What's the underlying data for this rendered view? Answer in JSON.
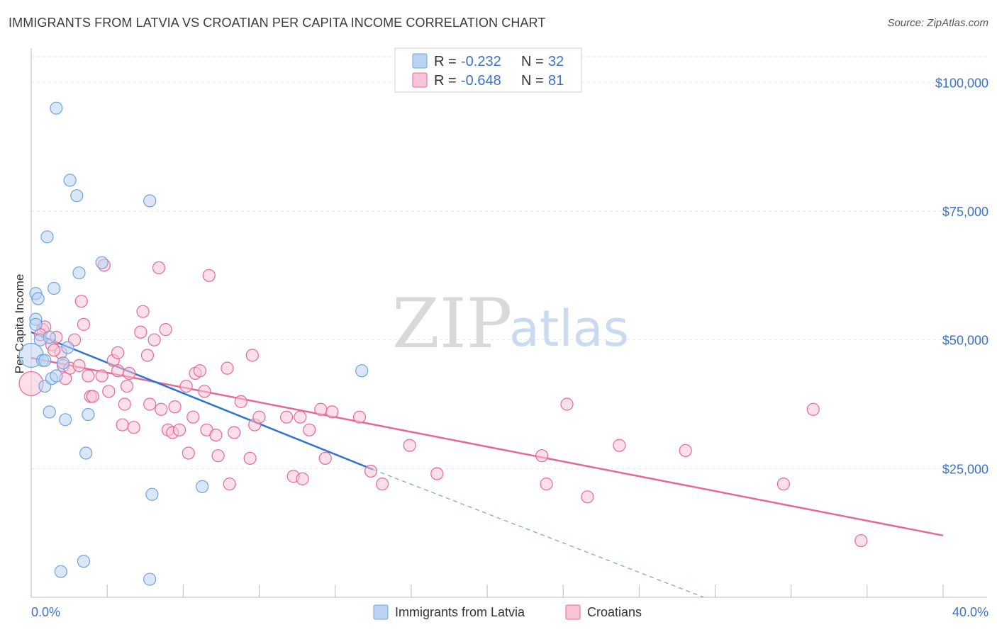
{
  "header": {
    "title": "IMMIGRANTS FROM LATVIA VS CROATIAN PER CAPITA INCOME CORRELATION CHART",
    "source": "Source: ZipAtlas.com"
  },
  "watermark": {
    "zip": "ZIP",
    "atlas": "atlas"
  },
  "legend": {
    "rows": [
      {
        "r_label": "R =",
        "r_value": "-0.232",
        "n_label": "N =",
        "n_value": "32",
        "color": "#a9c8f0"
      },
      {
        "r_label": "R =",
        "r_value": "-0.648",
        "n_label": "N =",
        "n_value": "81",
        "color": "#f7b8cc"
      }
    ]
  },
  "chart_data": {
    "type": "scatter",
    "title": "IMMIGRANTS FROM LATVIA VS CROATIAN PER CAPITA INCOME CORRELATION CHART",
    "xlabel": "",
    "ylabel": "Per Capita Income",
    "xlim": [
      0,
      40
    ],
    "ylim": [
      0,
      105000
    ],
    "x_tick_labels": [
      "0.0%",
      "40.0%"
    ],
    "y_ticks": [
      25000,
      50000,
      75000,
      100000
    ],
    "y_tick_labels": [
      "$25,000",
      "$50,000",
      "$75,000",
      "$100,000"
    ],
    "grid": true,
    "legend_position": "bottom",
    "series": [
      {
        "name": "Immigrants from Latvia",
        "color": "#6fa3e0",
        "fill": "#bcd4f3",
        "points": [
          [
            0.0,
            47000
          ],
          [
            0.2,
            54000
          ],
          [
            0.2,
            59000
          ],
          [
            0.3,
            58000
          ],
          [
            0.4,
            50000
          ],
          [
            0.5,
            46000
          ],
          [
            0.6,
            41000
          ],
          [
            0.7,
            70000
          ],
          [
            0.8,
            36000
          ],
          [
            0.8,
            50500
          ],
          [
            0.9,
            42500
          ],
          [
            1.0,
            60000
          ],
          [
            1.1,
            95000
          ],
          [
            1.1,
            43000
          ],
          [
            1.3,
            5000
          ],
          [
            1.4,
            45500
          ],
          [
            1.5,
            34500
          ],
          [
            1.6,
            48500
          ],
          [
            1.7,
            81000
          ],
          [
            2.0,
            78000
          ],
          [
            2.1,
            63000
          ],
          [
            2.3,
            7000
          ],
          [
            2.4,
            28000
          ],
          [
            2.5,
            35500
          ],
          [
            3.1,
            65000
          ],
          [
            5.2,
            3500
          ],
          [
            5.3,
            20000
          ],
          [
            5.2,
            77000
          ],
          [
            7.5,
            21500
          ],
          [
            14.5,
            44000
          ],
          [
            0.2,
            53000
          ],
          [
            0.6,
            46000
          ]
        ],
        "trend": {
          "x": [
            0.0,
            15.0
          ],
          "y": [
            51500,
            24800
          ]
        },
        "trend_extension": {
          "x": [
            15.0,
            29.5
          ],
          "y": [
            24800,
            -1000
          ]
        }
      },
      {
        "name": "Croatians",
        "color": "#e56a93",
        "fill": "#f9c4d5",
        "points": [
          [
            0.0,
            41500
          ],
          [
            0.5,
            52000
          ],
          [
            0.6,
            52500
          ],
          [
            0.9,
            49000
          ],
          [
            1.1,
            50500
          ],
          [
            1.3,
            47500
          ],
          [
            1.4,
            45000
          ],
          [
            1.5,
            42500
          ],
          [
            1.7,
            44500
          ],
          [
            1.9,
            50000
          ],
          [
            2.1,
            45000
          ],
          [
            2.2,
            57500
          ],
          [
            2.3,
            53000
          ],
          [
            2.5,
            43000
          ],
          [
            2.6,
            39000
          ],
          [
            2.7,
            39000
          ],
          [
            3.1,
            43000
          ],
          [
            3.2,
            64500
          ],
          [
            3.4,
            40000
          ],
          [
            3.6,
            46000
          ],
          [
            3.8,
            47500
          ],
          [
            3.8,
            44000
          ],
          [
            4.0,
            33500
          ],
          [
            4.1,
            37500
          ],
          [
            4.2,
            41000
          ],
          [
            4.3,
            43500
          ],
          [
            4.5,
            33000
          ],
          [
            4.8,
            51500
          ],
          [
            4.9,
            55500
          ],
          [
            5.1,
            47000
          ],
          [
            5.2,
            37500
          ],
          [
            5.4,
            50000
          ],
          [
            5.6,
            64000
          ],
          [
            5.7,
            36500
          ],
          [
            5.9,
            52000
          ],
          [
            6.0,
            32500
          ],
          [
            6.2,
            32000
          ],
          [
            6.3,
            37000
          ],
          [
            6.5,
            32500
          ],
          [
            6.8,
            41000
          ],
          [
            6.9,
            28000
          ],
          [
            7.1,
            35000
          ],
          [
            7.2,
            43500
          ],
          [
            7.4,
            44000
          ],
          [
            7.6,
            40000
          ],
          [
            7.7,
            32500
          ],
          [
            7.8,
            62500
          ],
          [
            8.1,
            31500
          ],
          [
            8.2,
            27500
          ],
          [
            8.6,
            44500
          ],
          [
            8.7,
            22000
          ],
          [
            8.9,
            32000
          ],
          [
            9.2,
            38000
          ],
          [
            9.6,
            27000
          ],
          [
            9.7,
            47000
          ],
          [
            9.8,
            33500
          ],
          [
            10.0,
            35000
          ],
          [
            11.2,
            35000
          ],
          [
            11.5,
            23500
          ],
          [
            11.8,
            35000
          ],
          [
            11.9,
            23000
          ],
          [
            12.2,
            32500
          ],
          [
            12.7,
            36500
          ],
          [
            12.9,
            27000
          ],
          [
            13.2,
            36000
          ],
          [
            14.4,
            35000
          ],
          [
            14.9,
            24500
          ],
          [
            15.4,
            22000
          ],
          [
            16.6,
            29500
          ],
          [
            17.8,
            24000
          ],
          [
            22.4,
            27500
          ],
          [
            22.6,
            22000
          ],
          [
            23.5,
            37500
          ],
          [
            24.4,
            19500
          ],
          [
            25.8,
            29500
          ],
          [
            28.7,
            28500
          ],
          [
            33.0,
            22000
          ],
          [
            34.3,
            36500
          ],
          [
            36.4,
            11000
          ],
          [
            1.0,
            48000
          ],
          [
            0.4,
            51000
          ]
        ],
        "trend": {
          "x": [
            0.0,
            40.0
          ],
          "y": [
            46500,
            12000
          ]
        }
      }
    ]
  }
}
